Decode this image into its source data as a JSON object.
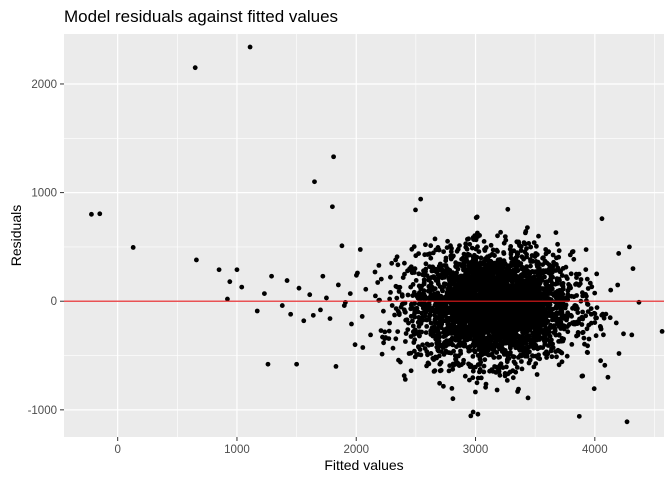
{
  "chart_data": {
    "type": "scatter",
    "title": "Model residuals against fitted values",
    "xlabel": "Fitted values",
    "ylabel": "Residuals",
    "xlim": [
      -450,
      4580
    ],
    "ylim": [
      -1250,
      2460
    ],
    "x_ticks": [
      0,
      1000,
      2000,
      3000,
      4000
    ],
    "y_ticks": [
      -1000,
      0,
      1000,
      2000
    ],
    "grid": true,
    "panel_background": "#ebebeb",
    "grid_color": "#ffffff",
    "point_color": "#000000",
    "reference_line": {
      "y": 0,
      "color": "#e31a1c"
    },
    "dense_cluster": {
      "center_x": 3150,
      "center_y": -50,
      "spread_x": 330,
      "spread_y": 250,
      "count": 3600
    },
    "points": [
      [
        -220,
        800
      ],
      [
        -150,
        805
      ],
      [
        130,
        495
      ],
      [
        650,
        2150
      ],
      [
        1110,
        2340
      ],
      [
        1650,
        1100
      ],
      [
        1810,
        1330
      ],
      [
        1800,
        870
      ],
      [
        660,
        380
      ],
      [
        850,
        290
      ],
      [
        1000,
        290
      ],
      [
        1880,
        510
      ],
      [
        2540,
        940
      ],
      [
        1260,
        -580
      ],
      [
        1500,
        -580
      ],
      [
        1830,
        -600
      ],
      [
        2980,
        -1020
      ],
      [
        3020,
        -1040
      ],
      [
        3870,
        -1060
      ],
      [
        4270,
        -1110
      ],
      [
        4110,
        -700
      ],
      [
        4370,
        -10
      ],
      [
        4290,
        500
      ],
      [
        4320,
        300
      ],
      [
        4310,
        -310
      ],
      [
        4200,
        440
      ],
      [
        4180,
        -200
      ],
      [
        4060,
        760
      ],
      [
        3970,
        -120
      ],
      [
        3440,
        -890
      ],
      [
        920,
        20
      ],
      [
        940,
        180
      ],
      [
        1040,
        130
      ],
      [
        1170,
        -90
      ],
      [
        1230,
        70
      ],
      [
        1290,
        230
      ],
      [
        1380,
        -40
      ],
      [
        1420,
        190
      ],
      [
        1450,
        -120
      ],
      [
        1520,
        120
      ],
      [
        1560,
        -180
      ],
      [
        1610,
        60
      ],
      [
        1640,
        -130
      ],
      [
        1700,
        -80
      ],
      [
        1720,
        230
      ],
      [
        1750,
        30
      ],
      [
        1780,
        -160
      ],
      [
        1850,
        150
      ],
      [
        1900,
        -40
      ],
      [
        1950,
        70
      ],
      [
        1960,
        -210
      ],
      [
        2010,
        260
      ],
      [
        2050,
        -140
      ],
      [
        2080,
        110
      ],
      [
        2120,
        -310
      ],
      [
        1990,
        -400
      ],
      [
        2190,
        330
      ],
      [
        2220,
        -330
      ],
      [
        2280,
        20
      ],
      [
        2330,
        380
      ],
      [
        2370,
        -560
      ],
      [
        2430,
        280
      ],
      [
        2460,
        -640
      ],
      [
        2520,
        -490
      ],
      [
        2580,
        520
      ]
    ]
  }
}
